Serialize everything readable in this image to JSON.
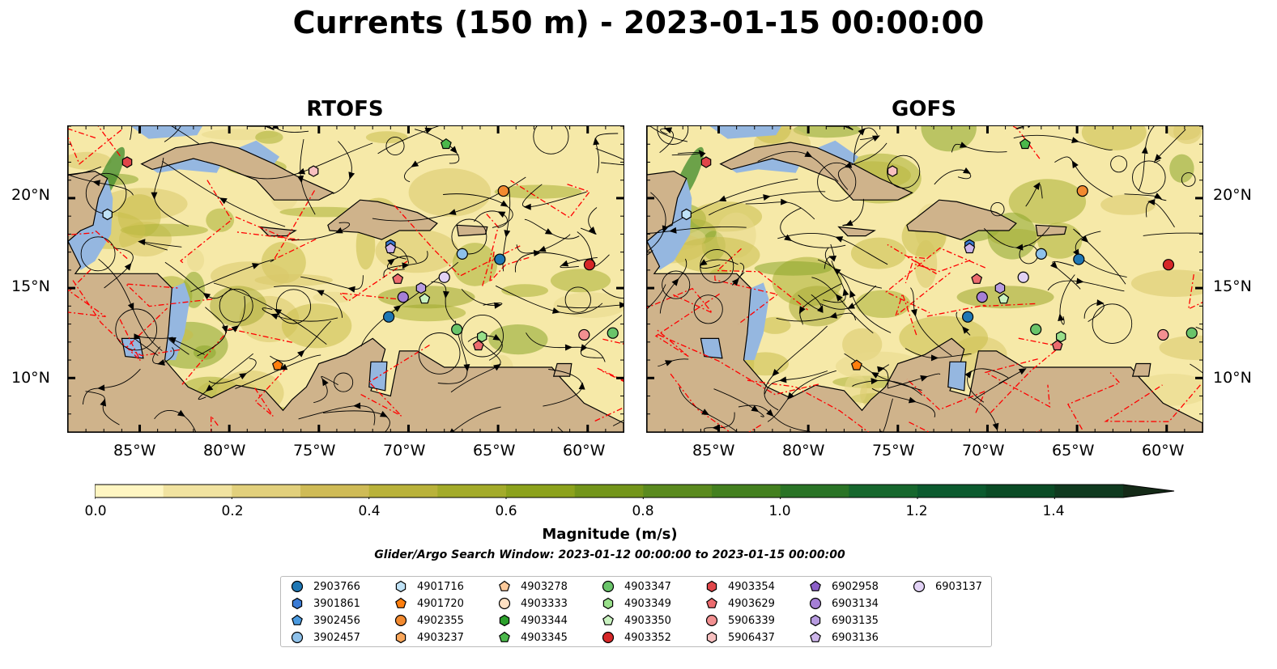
{
  "title": "Currents (150 m) - 2023-01-15 00:00:00",
  "panels": [
    {
      "id": "rtofs",
      "title": "RTOFS"
    },
    {
      "id": "gofs",
      "title": "GOFS"
    }
  ],
  "map": {
    "lon_range": [
      -89,
      -58
    ],
    "lat_range": [
      7,
      24
    ],
    "lon_ticks": [
      "85°W",
      "80°W",
      "75°W",
      "70°W",
      "65°W",
      "60°W"
    ],
    "lat_ticks": [
      "20°N",
      "15°N",
      "10°N"
    ],
    "colors": {
      "ocean_deep": "#f6e9a8",
      "land": "#cfb38b",
      "shelf_water": "#95b7e0",
      "eez_line": "#ff0000",
      "streamline": "#000000"
    }
  },
  "colorbar": {
    "label": "Magnitude (m/s)",
    "ticks": [
      "0.0",
      "0.2",
      "0.4",
      "0.6",
      "0.8",
      "1.0",
      "1.2",
      "1.4"
    ],
    "range": [
      0,
      1.5
    ],
    "extend": "max",
    "colors": [
      "#fff6c2",
      "#f1e3a0",
      "#e2d07c",
      "#cfbb56",
      "#b9b23a",
      "#a3ab2a",
      "#8ca21c",
      "#73951a",
      "#5a8a1e",
      "#43801f",
      "#2a7426",
      "#16672d",
      "#0b5a2e",
      "#0a4b25",
      "#0f3a1f",
      "#142a17"
    ]
  },
  "search_window": "Glider/Argo Search Window: 2023-01-12 00:00:00 to 2023-01-15 00:00:00",
  "legend": [
    {
      "label": "2903766",
      "marker": "circle",
      "color": "#1f77b4"
    },
    {
      "label": "3901861",
      "marker": "hexagon",
      "color": "#3a7bd5"
    },
    {
      "label": "3902456",
      "marker": "pentagon",
      "color": "#4a9ae0"
    },
    {
      "label": "3902457",
      "marker": "circle",
      "color": "#8ec1ea"
    },
    {
      "label": "4901716",
      "marker": "hexagon",
      "color": "#bfe2f6"
    },
    {
      "label": "4901720",
      "marker": "pentagon",
      "color": "#ff7f0e"
    },
    {
      "label": "4902355",
      "marker": "circle",
      "color": "#f28a30"
    },
    {
      "label": "4903237",
      "marker": "hexagon",
      "color": "#f9a65a"
    },
    {
      "label": "4903278",
      "marker": "pentagon",
      "color": "#fcc99a"
    },
    {
      "label": "4903333",
      "marker": "circle",
      "color": "#fde0c2"
    },
    {
      "label": "4903344",
      "marker": "hexagon",
      "color": "#2ca02c"
    },
    {
      "label": "4903345",
      "marker": "pentagon",
      "color": "#4bb84b"
    },
    {
      "label": "4903347",
      "marker": "circle",
      "color": "#6ac46a"
    },
    {
      "label": "4903349",
      "marker": "hexagon",
      "color": "#98df8a"
    },
    {
      "label": "4903350",
      "marker": "pentagon",
      "color": "#c9f2c0"
    },
    {
      "label": "4903352",
      "marker": "circle",
      "color": "#d62728"
    },
    {
      "label": "4903354",
      "marker": "hexagon",
      "color": "#e0464a"
    },
    {
      "label": "4903629",
      "marker": "pentagon",
      "color": "#ec6b6e"
    },
    {
      "label": "5906339",
      "marker": "circle",
      "color": "#f29091"
    },
    {
      "label": "5906437",
      "marker": "hexagon",
      "color": "#f8c0c0"
    },
    {
      "label": "6902958",
      "marker": "pentagon",
      "color": "#8c5fc8"
    },
    {
      "label": "6903134",
      "marker": "circle",
      "color": "#a57fd6"
    },
    {
      "label": "6903135",
      "marker": "hexagon",
      "color": "#b79be0"
    },
    {
      "label": "6903136",
      "marker": "pentagon",
      "color": "#cdb5ea"
    },
    {
      "label": "6903137",
      "marker": "circle",
      "color": "#e2d2f5"
    }
  ],
  "markers_rtofs": [
    {
      "id": "4903354",
      "lon": -85.7,
      "lat": 22.0
    },
    {
      "id": "4903345",
      "lon": -67.9,
      "lat": 23.0
    },
    {
      "id": "5906437",
      "lon": -75.3,
      "lat": 21.5
    },
    {
      "id": "4902355",
      "lon": -64.7,
      "lat": 20.4
    },
    {
      "id": "4901716",
      "lon": -86.8,
      "lat": 19.1
    },
    {
      "id": "3901861",
      "lon": -71.0,
      "lat": 17.4
    },
    {
      "id": "6903136",
      "lon": -71.0,
      "lat": 17.2
    },
    {
      "id": "3902457",
      "lon": -67.0,
      "lat": 16.9
    },
    {
      "id": "2903766",
      "lon": -64.9,
      "lat": 16.6
    },
    {
      "id": "4903352",
      "lon": -59.9,
      "lat": 16.3
    },
    {
      "id": "6903137",
      "lon": -68.0,
      "lat": 15.6
    },
    {
      "id": "4903629",
      "lon": -70.6,
      "lat": 15.5
    },
    {
      "id": "6903135",
      "lon": -69.3,
      "lat": 15.0
    },
    {
      "id": "6903134",
      "lon": -70.3,
      "lat": 14.5
    },
    {
      "id": "4903350",
      "lon": -69.1,
      "lat": 14.4
    },
    {
      "id": "2903766",
      "lon": -71.1,
      "lat": 13.4
    },
    {
      "id": "4903347",
      "lon": -67.3,
      "lat": 12.7
    },
    {
      "id": "4903349",
      "lon": -65.9,
      "lat": 12.3
    },
    {
      "id": "4903629",
      "lon": -66.1,
      "lat": 11.8
    },
    {
      "id": "5906339",
      "lon": -60.2,
      "lat": 12.4
    },
    {
      "id": "4903347",
      "lon": -58.6,
      "lat": 12.5
    },
    {
      "id": "4901720",
      "lon": -77.3,
      "lat": 10.7
    }
  ],
  "markers_gofs": [
    {
      "id": "4903354",
      "lon": -85.7,
      "lat": 22.0
    },
    {
      "id": "4903345",
      "lon": -67.9,
      "lat": 23.0
    },
    {
      "id": "5906437",
      "lon": -75.3,
      "lat": 21.5
    },
    {
      "id": "4902355",
      "lon": -64.7,
      "lat": 20.4
    },
    {
      "id": "4901716",
      "lon": -86.8,
      "lat": 19.1
    },
    {
      "id": "3901861",
      "lon": -71.0,
      "lat": 17.4
    },
    {
      "id": "6903136",
      "lon": -71.0,
      "lat": 17.2
    },
    {
      "id": "3902457",
      "lon": -67.0,
      "lat": 16.9
    },
    {
      "id": "2903766",
      "lon": -64.9,
      "lat": 16.6
    },
    {
      "id": "4903352",
      "lon": -59.9,
      "lat": 16.3
    },
    {
      "id": "6903137",
      "lon": -68.0,
      "lat": 15.6
    },
    {
      "id": "4903629",
      "lon": -70.6,
      "lat": 15.5
    },
    {
      "id": "6903135",
      "lon": -69.3,
      "lat": 15.0
    },
    {
      "id": "6903134",
      "lon": -70.3,
      "lat": 14.5
    },
    {
      "id": "4903350",
      "lon": -69.1,
      "lat": 14.4
    },
    {
      "id": "2903766",
      "lon": -71.1,
      "lat": 13.4
    },
    {
      "id": "4903347",
      "lon": -67.3,
      "lat": 12.7
    },
    {
      "id": "4903349",
      "lon": -65.9,
      "lat": 12.3
    },
    {
      "id": "4903629",
      "lon": -66.1,
      "lat": 11.8
    },
    {
      "id": "5906339",
      "lon": -60.2,
      "lat": 12.4
    },
    {
      "id": "4903347",
      "lon": -58.6,
      "lat": 12.5
    },
    {
      "id": "4901720",
      "lon": -77.3,
      "lat": 10.7
    }
  ]
}
